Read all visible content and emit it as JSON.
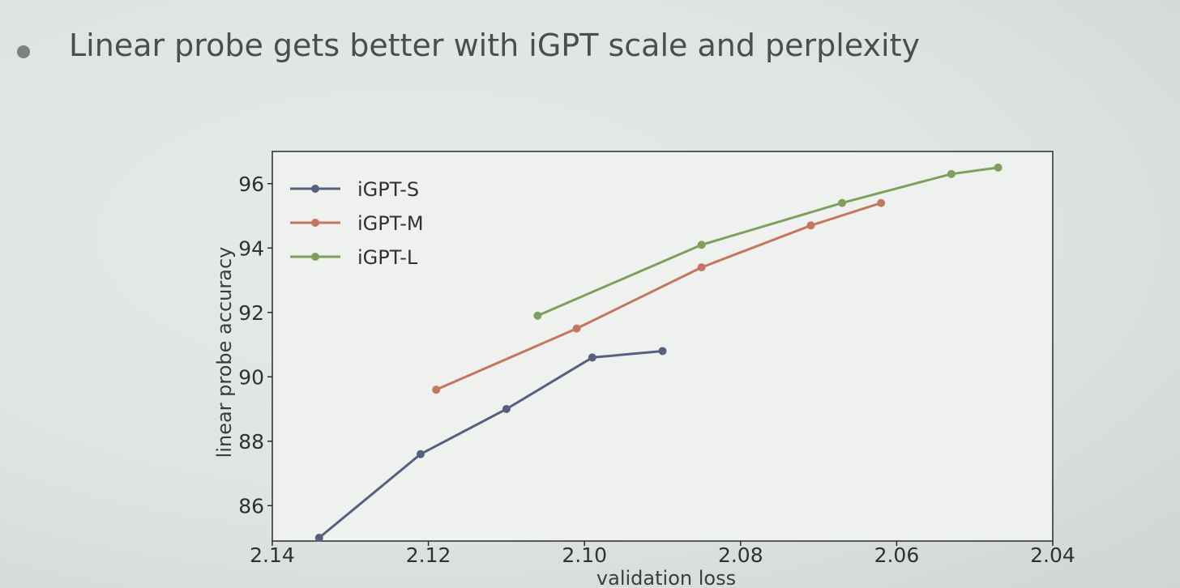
{
  "slide": {
    "bullet_text": "Linear probe gets better with iGPT scale and perplexity"
  },
  "chart_data": {
    "type": "line",
    "title": "",
    "xlabel": "validation loss",
    "ylabel": "linear probe accuracy",
    "xlim": [
      2.14,
      2.04
    ],
    "ylim": [
      84.9,
      97.0
    ],
    "x_axis_reversed": true,
    "xticks": [
      2.14,
      2.12,
      2.1,
      2.08,
      2.06,
      2.04
    ],
    "xtick_labels": [
      "2.14",
      "2.12",
      "2.10",
      "2.08",
      "2.06",
      "2.04"
    ],
    "yticks": [
      86,
      88,
      90,
      92,
      94,
      96
    ],
    "ytick_labels": [
      "86",
      "88",
      "90",
      "92",
      "94",
      "96"
    ],
    "grid": false,
    "legend_position": "top-left",
    "series": [
      {
        "name": "iGPT-S",
        "color": "#56607e",
        "x": [
          2.134,
          2.121,
          2.11,
          2.099,
          2.09
        ],
        "y": [
          85.0,
          87.6,
          89.0,
          90.6,
          90.8
        ]
      },
      {
        "name": "iGPT-M",
        "color": "#c5765e",
        "x": [
          2.119,
          2.101,
          2.085,
          2.071,
          2.062
        ],
        "y": [
          89.6,
          91.5,
          93.4,
          94.7,
          95.4
        ]
      },
      {
        "name": "iGPT-L",
        "color": "#7fa05c",
        "x": [
          2.106,
          2.085,
          2.067,
          2.053,
          2.047
        ],
        "y": [
          91.9,
          94.1,
          95.4,
          96.3,
          96.5
        ]
      }
    ]
  }
}
